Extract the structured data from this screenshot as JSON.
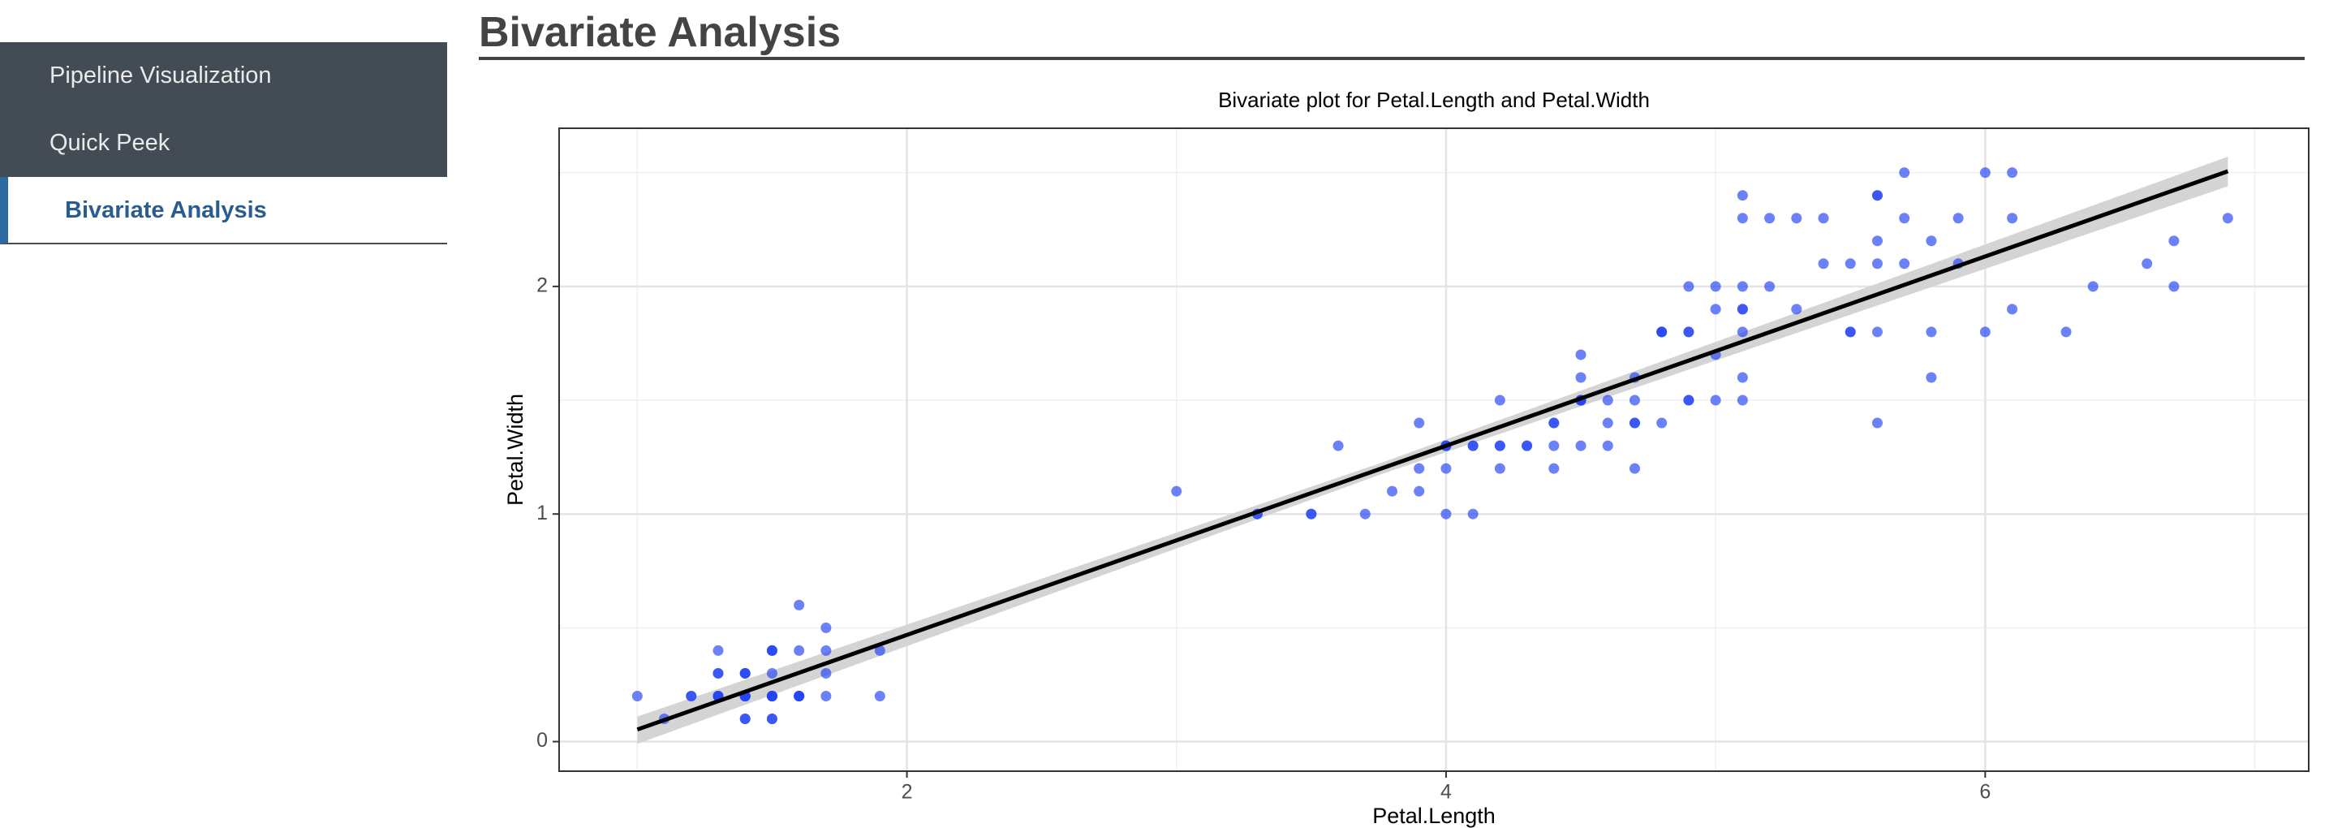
{
  "sidebar": {
    "items": [
      "Pipeline Visualization",
      "Quick Peek",
      "Bivariate Analysis"
    ]
  },
  "header": {
    "title": "Bivariate Analysis"
  },
  "chart_data": {
    "type": "scatter",
    "title": "Bivariate plot for Petal.Length and Petal.Width",
    "x_label": "Petal.Length",
    "y_label": "Petal.Width",
    "xlim": [
      0.71,
      7.2
    ],
    "ylim": [
      -0.13,
      2.695
    ],
    "xticks": [
      2,
      4,
      6
    ],
    "yticks": [
      0,
      1,
      2
    ],
    "grid": true,
    "x": [
      1.4,
      1.4,
      1.3,
      1.5,
      1.4,
      1.7,
      1.4,
      1.5,
      1.4,
      1.5,
      1.5,
      1.6,
      1.4,
      1.1,
      1.2,
      1.5,
      1.3,
      1.4,
      1.7,
      1.5,
      1.7,
      1.5,
      1.0,
      1.7,
      1.9,
      1.6,
      1.6,
      1.5,
      1.4,
      1.6,
      1.6,
      1.5,
      1.5,
      1.4,
      1.5,
      1.2,
      1.3,
      1.4,
      1.3,
      1.5,
      1.3,
      1.3,
      1.3,
      1.6,
      1.9,
      1.4,
      1.6,
      1.4,
      1.5,
      1.4,
      4.7,
      4.5,
      4.9,
      4.0,
      4.6,
      4.5,
      4.7,
      3.3,
      4.6,
      3.9,
      3.5,
      4.2,
      4.0,
      4.7,
      3.6,
      4.4,
      4.5,
      4.1,
      4.5,
      3.9,
      4.8,
      4.0,
      4.9,
      4.7,
      4.3,
      4.4,
      4.8,
      5.0,
      4.5,
      3.5,
      3.8,
      3.7,
      3.9,
      5.1,
      4.5,
      4.5,
      4.7,
      4.4,
      4.1,
      4.0,
      4.4,
      4.6,
      4.0,
      3.3,
      4.2,
      4.2,
      4.2,
      4.3,
      3.0,
      4.1,
      6.0,
      5.1,
      5.9,
      5.6,
      5.8,
      6.6,
      4.5,
      6.3,
      5.8,
      6.1,
      5.1,
      5.3,
      5.5,
      5.0,
      5.1,
      5.3,
      5.5,
      6.7,
      6.9,
      5.0,
      5.7,
      4.9,
      6.7,
      4.9,
      5.7,
      6.0,
      4.8,
      4.9,
      5.6,
      5.8,
      6.1,
      6.4,
      5.6,
      5.1,
      5.6,
      6.1,
      5.6,
      5.5,
      4.8,
      5.4,
      5.6,
      5.1,
      5.1,
      5.9,
      5.7,
      5.2,
      5.0,
      5.2,
      5.4,
      5.1
    ],
    "series": [
      {
        "color": "#2546f5",
        "values": [
          0.2,
          0.2,
          0.2,
          0.2,
          0.2,
          0.4,
          0.3,
          0.2,
          0.2,
          0.1,
          0.2,
          0.2,
          0.1,
          0.1,
          0.2,
          0.4,
          0.4,
          0.3,
          0.3,
          0.3,
          0.2,
          0.4,
          0.2,
          0.5,
          0.2,
          0.2,
          0.4,
          0.2,
          0.2,
          0.2,
          0.2,
          0.4,
          0.1,
          0.2,
          0.2,
          0.2,
          0.2,
          0.1,
          0.2,
          0.2,
          0.3,
          0.3,
          0.2,
          0.6,
          0.4,
          0.3,
          0.2,
          0.2,
          0.2,
          0.2,
          1.4,
          1.5,
          1.5,
          1.3,
          1.5,
          1.3,
          1.6,
          1.0,
          1.3,
          1.4,
          1.0,
          1.5,
          1.0,
          1.4,
          1.3,
          1.4,
          1.5,
          1.0,
          1.5,
          1.1,
          1.8,
          1.3,
          1.5,
          1.2,
          1.3,
          1.4,
          1.4,
          1.7,
          1.5,
          1.0,
          1.1,
          1.0,
          1.2,
          1.6,
          1.5,
          1.6,
          1.5,
          1.3,
          1.3,
          1.3,
          1.2,
          1.4,
          1.2,
          1.0,
          1.3,
          1.2,
          1.3,
          1.3,
          1.1,
          1.3,
          2.5,
          1.9,
          2.1,
          1.8,
          2.2,
          2.1,
          1.7,
          1.8,
          1.8,
          2.5,
          2.0,
          1.9,
          2.1,
          2.0,
          2.4,
          2.3,
          1.8,
          2.2,
          2.3,
          1.5,
          2.3,
          2.0,
          2.0,
          1.8,
          2.1,
          1.8,
          1.8,
          1.8,
          2.1,
          1.6,
          1.9,
          2.0,
          2.2,
          1.5,
          1.4,
          2.3,
          2.4,
          1.8,
          1.8,
          2.1,
          2.4,
          2.3,
          1.9,
          2.3,
          2.5,
          2.3,
          1.9,
          2.0,
          2.3,
          1.8
        ]
      }
    ],
    "fit": {
      "x": [
        1.0,
        3.76,
        6.9
      ],
      "values": [
        0.053,
        1.2,
        2.506
      ],
      "lower": [
        -0.01,
        1.175,
        2.44
      ],
      "upper": [
        0.11,
        1.225,
        2.57
      ],
      "color": "#000000",
      "band_color": "#d4d4d4"
    }
  }
}
